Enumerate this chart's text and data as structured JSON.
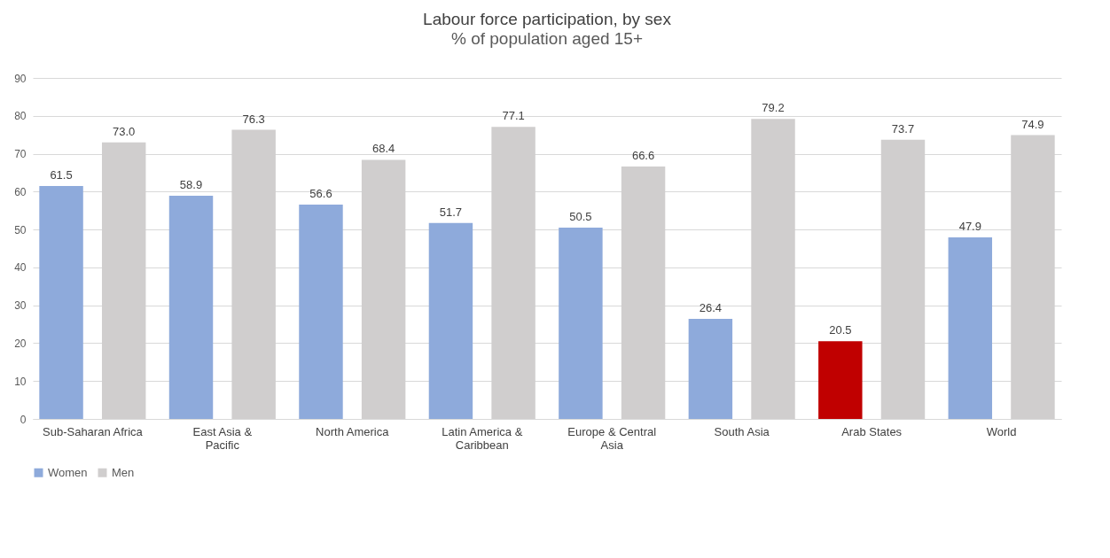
{
  "chart_data": {
    "type": "bar",
    "title": "Labour force participation, by sex",
    "subtitle": "% of population aged 15+",
    "categories": [
      "Sub-Saharan Africa",
      "East Asia & Pacific",
      "North America",
      "Latin America & Caribbean",
      "Europe & Central Asia",
      "South Asia",
      "Arab States",
      "World"
    ],
    "series": [
      {
        "name": "Women",
        "color": "#8eaadb",
        "colors": [
          "#8eaadb",
          "#8eaadb",
          "#8eaadb",
          "#8eaadb",
          "#8eaadb",
          "#8eaadb",
          "#c00000",
          "#8eaadb"
        ],
        "values": [
          61.5,
          58.9,
          56.6,
          51.7,
          50.5,
          26.4,
          20.5,
          47.9
        ],
        "value_labels": [
          "61.5",
          "58.9",
          "56.6",
          "51.7",
          "50.5",
          "26.4",
          "20.5",
          "47.9"
        ]
      },
      {
        "name": "Men",
        "color": "#d0cece",
        "values": [
          73.0,
          76.3,
          68.4,
          77.1,
          66.6,
          79.2,
          73.7,
          74.9
        ],
        "value_labels": [
          "73.0",
          "76.3",
          "68.4",
          "77.1",
          "66.6",
          "79.2",
          "73.7",
          "74.9"
        ]
      }
    ],
    "ylim": [
      0,
      90
    ],
    "yticks": [
      0,
      10,
      20,
      30,
      40,
      50,
      60,
      70,
      80,
      90
    ],
    "grid": "y",
    "legend": "bottom"
  }
}
